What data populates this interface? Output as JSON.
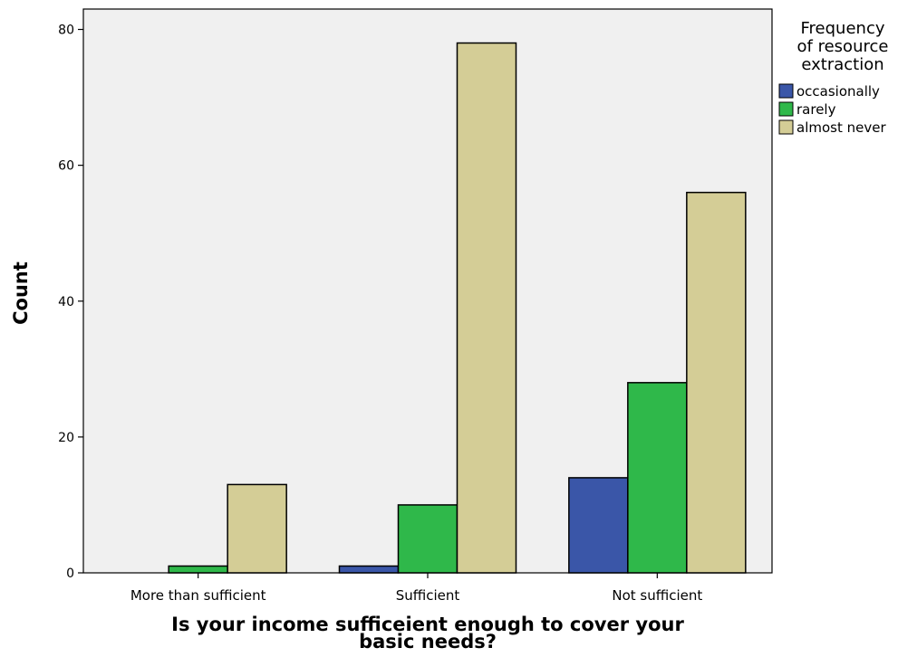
{
  "chart_data": {
    "type": "bar",
    "categories": [
      "More than sufficient",
      "Sufficient",
      "Not sufficient"
    ],
    "series": [
      {
        "name": "occasionally",
        "color": "#3a56a8",
        "values": [
          0,
          1,
          14
        ]
      },
      {
        "name": "rarely",
        "color": "#2fb84a",
        "values": [
          1,
          10,
          28
        ]
      },
      {
        "name": "almost never",
        "color": "#d4cd96",
        "values": [
          13,
          78,
          56
        ]
      }
    ],
    "xlabel": "Is your income sufficeient enough to cover your basic needs?",
    "xlabel_lines": [
      "Is your income sufficeient enough to cover your",
      "basic needs?"
    ],
    "ylabel": "Count",
    "ylim": [
      0,
      83
    ],
    "yticks": [
      0,
      20,
      40,
      60,
      80
    ],
    "legend_title_lines": [
      "Frequency",
      "of resource",
      "extraction"
    ],
    "legend_position": "top-right",
    "plot_background": "#f0f0f0",
    "grid": false
  }
}
